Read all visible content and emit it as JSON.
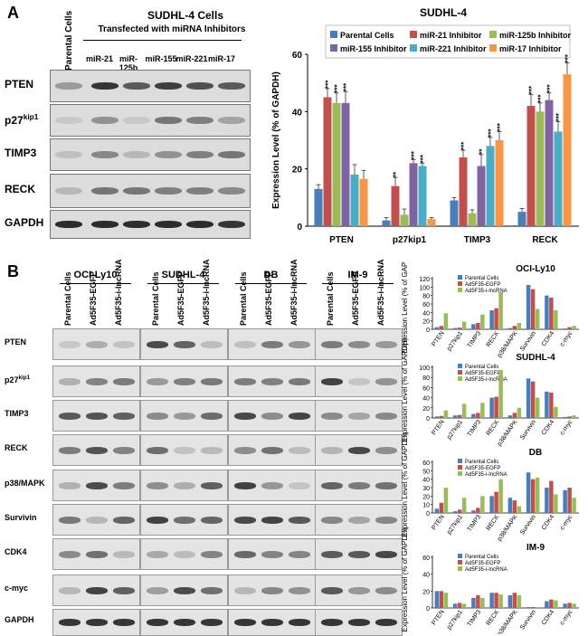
{
  "panelA": {
    "letter": "A",
    "blot": {
      "header_title": "SUDHL-4 Cells",
      "header_subtitle": "Transfected with miRNA Inhibitors",
      "parental_label": "Parental Cells",
      "lanes": [
        "miR-21",
        "miR-125b",
        "miR-155",
        "miR-221",
        "miR-17"
      ],
      "rows": [
        "PTEN",
        "p27",
        "TIMP3",
        "RECK",
        "GAPDH"
      ],
      "p27_sup": "kip1"
    }
  },
  "panelB": {
    "letter": "B",
    "blot": {
      "cell_lines": [
        "OCI-Ly10",
        "SUDHL-4",
        "DB",
        "IM-9"
      ],
      "lanes": [
        "Parental Cells",
        "Ad5F35-EGFP",
        "Ad5F35-i-lncRNA"
      ],
      "rows": [
        "PTEN",
        "p27",
        "TIMP3",
        "RECK",
        "p38/MAPK",
        "Survivin",
        "CDK4",
        "c-myc",
        "GAPDH"
      ],
      "p27_sup": "kip1"
    }
  },
  "chart_data": [
    {
      "type": "bar",
      "title": "SUDHL-4",
      "ylabel": "Expression Level (% of GAPDH)",
      "ylim": [
        0,
        60
      ],
      "yticks": [
        0,
        20,
        40,
        60
      ],
      "categories": [
        "PTEN",
        "p27kip1",
        "TIMP3",
        "RECK"
      ],
      "legend_position": "top",
      "series": [
        {
          "name": "Parental Cells",
          "color": "#4a7ebb",
          "values": [
            13,
            2,
            9,
            5
          ],
          "err": [
            1.5,
            1,
            1,
            1.2
          ],
          "sig": [
            "",
            "",
            "",
            ""
          ]
        },
        {
          "name": "miR-21 Inhibitor",
          "color": "#c0504d",
          "values": [
            45,
            14,
            24,
            42
          ],
          "err": [
            3,
            3,
            2.5,
            4
          ],
          "sig": [
            "***",
            "**",
            "***",
            "***"
          ]
        },
        {
          "name": "miR-125b Inhibitor",
          "color": "#9bbb59",
          "values": [
            43,
            4,
            4.5,
            40
          ],
          "err": [
            3.5,
            2,
            1.2,
            3
          ],
          "sig": [
            "***",
            "",
            "",
            "***"
          ]
        },
        {
          "name": "miR-155 Inhibitor",
          "color": "#8064a2",
          "values": [
            43,
            22,
            21,
            44
          ],
          "err": [
            4,
            1.2,
            4,
            2.5
          ],
          "sig": [
            "***",
            "***",
            "**",
            "***"
          ]
        },
        {
          "name": "miR-221 Inhibitor",
          "color": "#4bacc6",
          "values": [
            18,
            21,
            28,
            33
          ],
          "err": [
            3.5,
            1,
            3,
            3.5
          ],
          "sig": [
            "",
            "***",
            "***",
            "***"
          ]
        },
        {
          "name": "miR-17 Inhibitor",
          "color": "#f79646",
          "values": [
            16.5,
            2.5,
            30,
            53
          ],
          "err": [
            3,
            0.5,
            3,
            4
          ],
          "sig": [
            "",
            "",
            "***",
            "***"
          ]
        }
      ]
    },
    {
      "type": "bar",
      "title": "OCI-Ly10",
      "ylabel": "Expression Level (% of GAPDH)",
      "ylim": [
        0,
        120
      ],
      "yticks": [
        0,
        20,
        40,
        60,
        80,
        100,
        120
      ],
      "categories": [
        "PTEN",
        "p27kip1",
        "TIMP3",
        "RECK",
        "p38/MAPK",
        "Survivin",
        "CDK4",
        "c-myc"
      ],
      "series": [
        {
          "name": "Parental Cells",
          "color": "#4a7ebb",
          "values": [
            5,
            3,
            12,
            45,
            3,
            105,
            80,
            2
          ]
        },
        {
          "name": "Ad5F35-EGFP",
          "color": "#c0504d",
          "values": [
            8,
            4,
            15,
            50,
            8,
            95,
            75,
            5
          ]
        },
        {
          "name": "Ad5F35-i-lncRNA",
          "color": "#9bbb59",
          "values": [
            38,
            18,
            35,
            88,
            15,
            48,
            45,
            8
          ]
        }
      ]
    },
    {
      "type": "bar",
      "title": "SUDHL-4",
      "ylabel": "Expression Level (% of GAPDH)",
      "ylim": [
        0,
        100
      ],
      "yticks": [
        0,
        20,
        40,
        60,
        80,
        100
      ],
      "categories": [
        "PTEN",
        "p27kip1",
        "TIMP3",
        "RECK",
        "p38/MAPK",
        "Survivin",
        "CDK4",
        "c-myc"
      ],
      "series": [
        {
          "name": "Parental Cells",
          "color": "#4a7ebb",
          "values": [
            3,
            5,
            8,
            40,
            5,
            78,
            52,
            2
          ]
        },
        {
          "name": "Ad5F35-EGFP",
          "color": "#c0504d",
          "values": [
            4,
            6,
            10,
            42,
            10,
            72,
            50,
            3
          ]
        },
        {
          "name": "Ad5F35-i-lncRNA",
          "color": "#9bbb59",
          "values": [
            15,
            28,
            30,
            95,
            20,
            40,
            22,
            5
          ]
        }
      ]
    },
    {
      "type": "bar",
      "title": "DB",
      "ylabel": "Expression Level (% of GAPDH)",
      "ylim": [
        0,
        60
      ],
      "yticks": [
        0,
        10,
        20,
        30,
        40,
        50,
        60
      ],
      "categories": [
        "PTEN",
        "p27kip1",
        "TIMP3",
        "RECK",
        "p38/MAPK",
        "Survivin",
        "CDK4",
        "c-myc"
      ],
      "series": [
        {
          "name": "Parental Cells",
          "color": "#4a7ebb",
          "values": [
            5,
            2,
            3,
            20,
            18,
            48,
            30,
            27
          ]
        },
        {
          "name": "Ad5F35-EGFP",
          "color": "#c0504d",
          "values": [
            12,
            4,
            6,
            25,
            15,
            40,
            38,
            30
          ]
        },
        {
          "name": "Ad5F35-i-lncRNA",
          "color": "#9bbb59",
          "values": [
            30,
            18,
            20,
            40,
            8,
            42,
            22,
            18
          ]
        }
      ]
    },
    {
      "type": "bar",
      "title": "IM-9",
      "ylabel": "Expression Level (% of GAPDH)",
      "ylim": [
        0,
        60
      ],
      "yticks": [
        0,
        20,
        40,
        60
      ],
      "categories": [
        "PTEN",
        "p27kip1",
        "TIMP3",
        "RECK",
        "p38/MAPK",
        "Survivin",
        "CDK4",
        "c-myc"
      ],
      "series": [
        {
          "name": "Parental Cells",
          "color": "#4a7ebb",
          "values": [
            20,
            5,
            12,
            18,
            15,
            1,
            8,
            5
          ]
        },
        {
          "name": "Ad5F35-EGFP",
          "color": "#c0504d",
          "values": [
            20,
            6,
            15,
            18,
            18,
            1,
            10,
            6
          ]
        },
        {
          "name": "Ad5F35-i-lncRNA",
          "color": "#9bbb59",
          "values": [
            18,
            5,
            12,
            16,
            15,
            1,
            9,
            5
          ]
        }
      ]
    }
  ]
}
